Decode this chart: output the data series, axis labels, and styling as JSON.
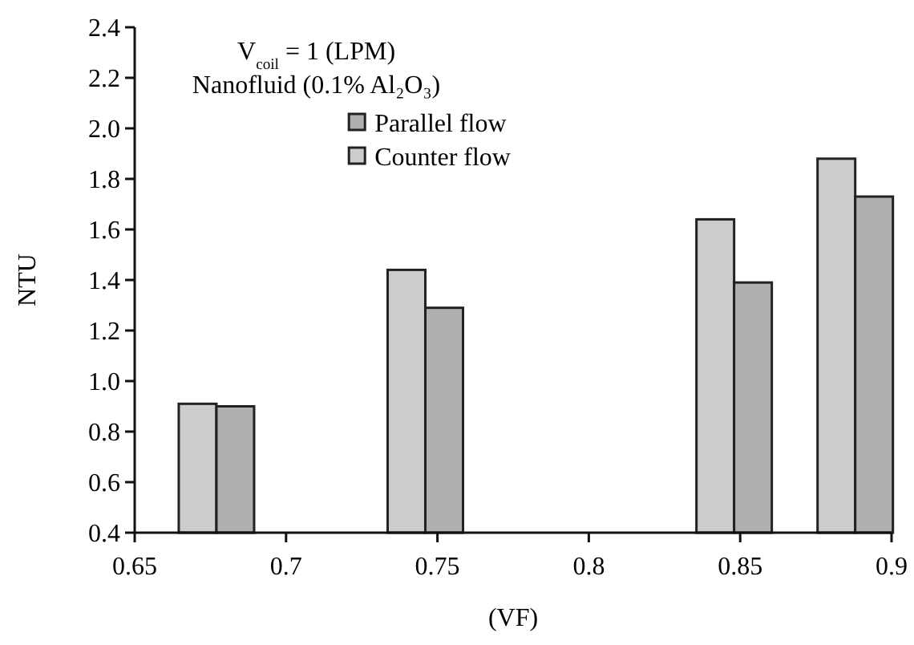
{
  "chart_data": {
    "type": "bar",
    "xlabel": "(VF)",
    "ylabel": "NTU",
    "annotations": [
      "V$_{coil}$ = 1 (LPM)",
      "Nanofluid (0.1% Al₂O₃)"
    ],
    "x": [
      0.677,
      0.746,
      0.848,
      0.888
    ],
    "series": [
      {
        "name": "Counter flow",
        "color": "#cccccc",
        "values": [
          0.91,
          1.44,
          1.64,
          1.88
        ]
      },
      {
        "name": "Parallel flow",
        "color": "#b0b0b0",
        "values": [
          0.9,
          1.29,
          1.39,
          1.73
        ]
      }
    ],
    "xlim": [
      0.65,
      0.9
    ],
    "xticks": [
      0.65,
      0.7,
      0.75,
      0.8,
      0.85,
      0.9
    ],
    "ylim": [
      0.4,
      2.4
    ],
    "yticks": [
      {
        "value": 0.4,
        "label": "0.4"
      },
      {
        "value": 0.6,
        "label": "0.6"
      },
      {
        "value": 0.8,
        "label": "0.8"
      },
      {
        "value": 1.0,
        "label": "1.0"
      },
      {
        "value": 1.2,
        "label": "1.2"
      },
      {
        "value": 1.4,
        "label": "1.4"
      },
      {
        "value": 1.6,
        "label": "1.6"
      },
      {
        "value": 1.8,
        "label": "1.8"
      },
      {
        "value": 2.0,
        "label": "2.0"
      },
      {
        "value": 2.2,
        "label": "2.2"
      },
      {
        "value": 2.4,
        "label": "2.4"
      }
    ],
    "grid": false,
    "legend": "top left"
  }
}
